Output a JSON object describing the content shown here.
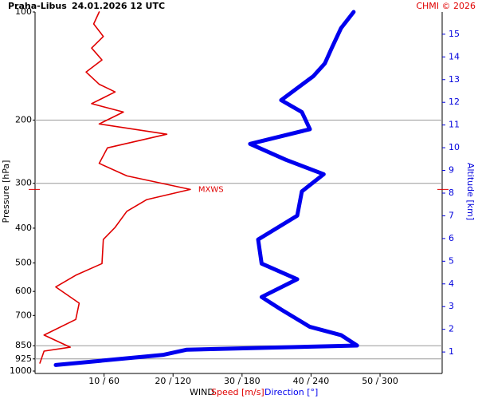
{
  "chart_data": {
    "type": "profile",
    "title": "Praha-Libus",
    "subtitle": "24.01.2026 12 UTC",
    "credit": "CHMI © 2026",
    "xlabel": "WIND",
    "ylabel": "Pressure [hPa]",
    "y2label": "Altitude [km]",
    "xlim": [
      0,
      59
    ],
    "xticks": [
      {
        "value": 10,
        "label": "10 / 60"
      },
      {
        "value": 20,
        "label": "20 / 120"
      },
      {
        "value": 30,
        "label": "30 / 180"
      },
      {
        "value": 40,
        "label": "40 / 240"
      },
      {
        "value": 50,
        "label": "50 / 300"
      }
    ],
    "ylim": [
      100,
      1000
    ],
    "log_y": true,
    "inverted_y": true,
    "yticks": [
      100,
      200,
      300,
      400,
      500,
      600,
      700,
      850,
      925,
      1000
    ],
    "grid_levels": [
      200,
      300,
      850,
      925
    ],
    "y2lim": [
      0.16,
      15.98
    ],
    "y2ticks": [
      1,
      2,
      3,
      4,
      5,
      6,
      7,
      8,
      9,
      10,
      11,
      12,
      13,
      14,
      15
    ],
    "y2color": "#0000dd",
    "series": [
      {
        "name": "Speed [m/s]",
        "color": "#e00000",
        "scale": 1,
        "pressure": [
          100,
          108,
          117,
          126,
          136,
          147,
          159,
          167,
          180,
          190,
          205,
          219,
          239,
          264,
          286,
          312,
          333,
          359,
          398,
          430,
          502,
          541,
          583,
          647,
          718,
          794,
          858,
          880,
          950
        ],
        "values": [
          9.3,
          8.5,
          9.9,
          8.2,
          9.7,
          7.4,
          9.3,
          11.6,
          8.2,
          12.8,
          9.3,
          19.1,
          10.5,
          9.3,
          13.3,
          22.5,
          16.2,
          13.3,
          11.6,
          9.9,
          9.7,
          5.9,
          3.0,
          6.4,
          5.9,
          1.3,
          5.1,
          1.3,
          0.7
        ]
      },
      {
        "name": "Direction [°]",
        "color": "#0000ee",
        "scale": 6,
        "pressure": [
          100,
          111,
          126,
          139,
          151,
          176,
          190,
          212,
          233,
          258,
          283,
          316,
          369,
          430,
          502,
          555,
          622,
          674,
          753,
          794,
          849,
          872,
          902,
          962
        ],
        "values": [
          277,
          266,
          258,
          252,
          242,
          214,
          232,
          239,
          187,
          218,
          251,
          232,
          228,
          194,
          197,
          228,
          197,
          214,
          239,
          266,
          280,
          132,
          111,
          18
        ]
      }
    ],
    "annotation": {
      "text": "MXWS",
      "pressure": 312,
      "series": 0,
      "index": 15
    }
  }
}
